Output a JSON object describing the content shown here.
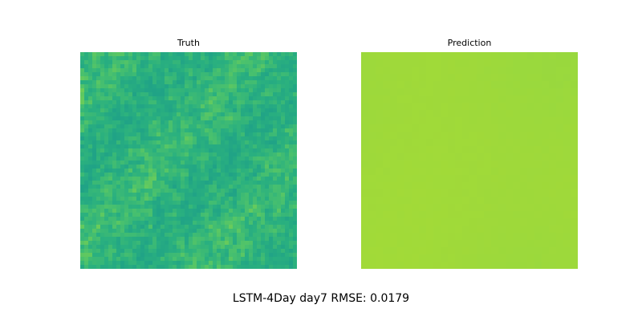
{
  "chart_data": [
    {
      "type": "heatmap",
      "title": "Truth",
      "colormap": "viridis",
      "grid": false,
      "axes_visible": false,
      "value_range": [
        0.55,
        0.78
      ],
      "colors": [
        "#20a386",
        "#2ab07f",
        "#4ac16d",
        "#7ad151"
      ]
    },
    {
      "type": "heatmap",
      "title": "Prediction",
      "colormap": "viridis",
      "grid": false,
      "axes_visible": false,
      "value_range": [
        0.8,
        0.86
      ],
      "colors": [
        "#8fd744",
        "#9dd93b",
        "#a8db34"
      ]
    }
  ],
  "caption": "LSTM-4Day day7 RMSE: 0.0179"
}
